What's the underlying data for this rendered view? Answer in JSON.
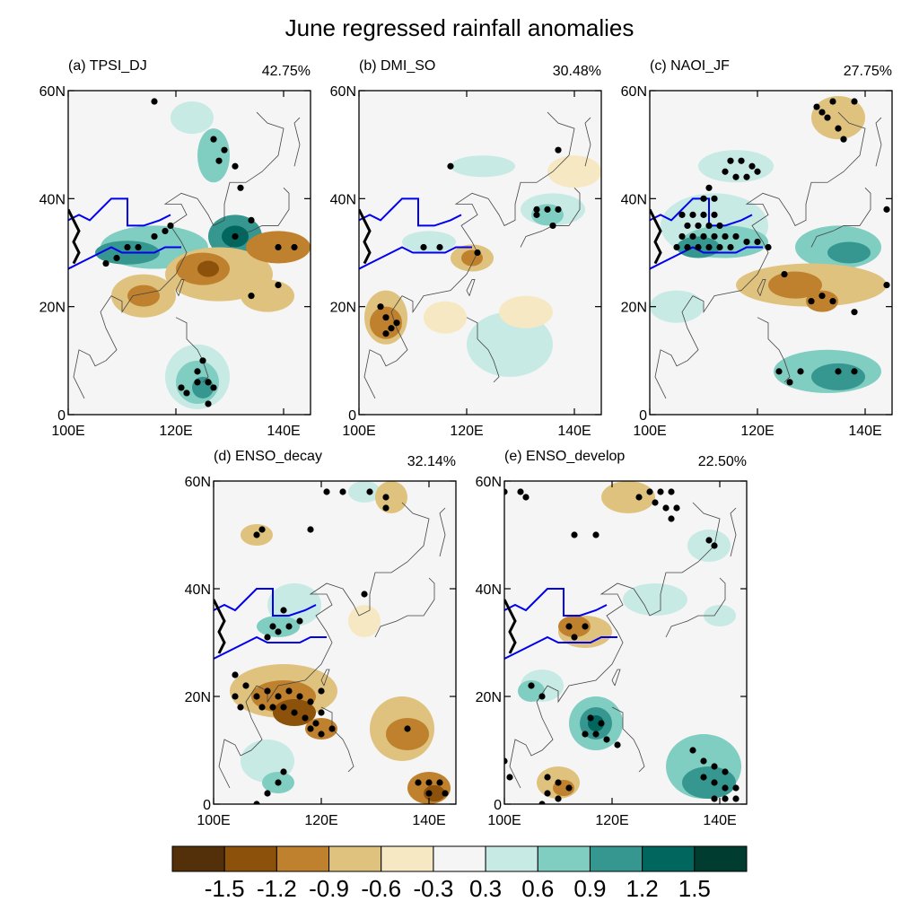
{
  "title": "June regressed rainfall anomalies",
  "axis_labels": {
    "lat_ticks": [
      "0",
      "20N",
      "40N",
      "60N"
    ],
    "lon_ticks": [
      "100E",
      "120E",
      "140E"
    ]
  },
  "panels": [
    {
      "label": "(a) TPSI_DJ",
      "percent": "42.75%"
    },
    {
      "label": "(b) DMI_SO",
      "percent": "30.48%"
    },
    {
      "label": "(c) NAOI_JF",
      "percent": "27.75%"
    },
    {
      "label": "(d) ENSO_decay",
      "percent": "32.14%"
    },
    {
      "label": "(e) ENSO_develop",
      "percent": "22.50%"
    }
  ],
  "colorbar": {
    "labels": [
      "-1.5",
      "-1.2",
      "-0.9",
      "-0.6",
      "-0.3",
      "0.3",
      "0.6",
      "0.9",
      "1.2",
      "1.5"
    ],
    "colors": [
      "#54300a",
      "#8c510a",
      "#bf812d",
      "#dfc27d",
      "#f6e8c3",
      "#f5f5f5",
      "#c7eae5",
      "#80cdc1",
      "#35978f",
      "#01665e",
      "#003c30"
    ]
  },
  "map": {
    "lon_range": [
      100,
      145
    ],
    "lat_range": [
      0,
      60
    ],
    "anomaly_colors": {
      "dry_strong": "#8c510a",
      "dry_mid": "#bf812d",
      "dry_weak": "#dfc27d",
      "dry_faint": "#f6e8c3",
      "wet_faint": "#c7eae5",
      "wet_mid": "#80cdc1",
      "wet_strong": "#35978f",
      "wet_very": "#01665e"
    },
    "river_color": "#0000ee"
  }
}
